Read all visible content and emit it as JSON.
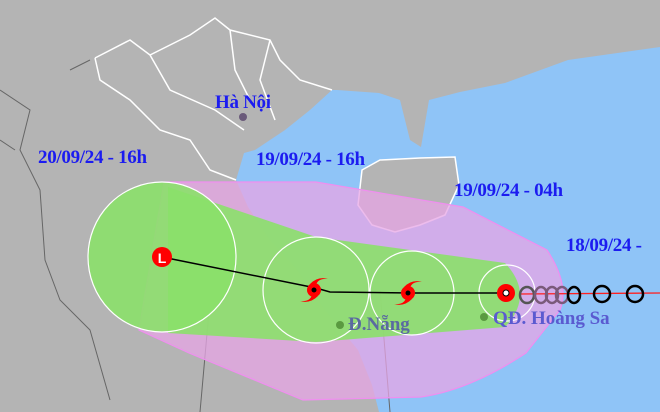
{
  "colors": {
    "land": "#b4b4b4",
    "sea": "#8fc4f7",
    "cone": "#e7a6e6",
    "core": "#8be06a",
    "label": "#1c1cf0",
    "storm": "#ff0000",
    "track": "#ff0000"
  },
  "places": {
    "hanoi": "Hà Nội",
    "danang": "Đ.Nẵng",
    "hoangsa": "QĐ. Hoàng Sa"
  },
  "forecast_labels": [
    "20/09/24 - 16h",
    "19/09/24 - 16h",
    "19/09/24 - 04h",
    "18/09/24 -"
  ],
  "symbols": {
    "low": "L",
    "storm_icon": "tropical-depression-icon"
  }
}
